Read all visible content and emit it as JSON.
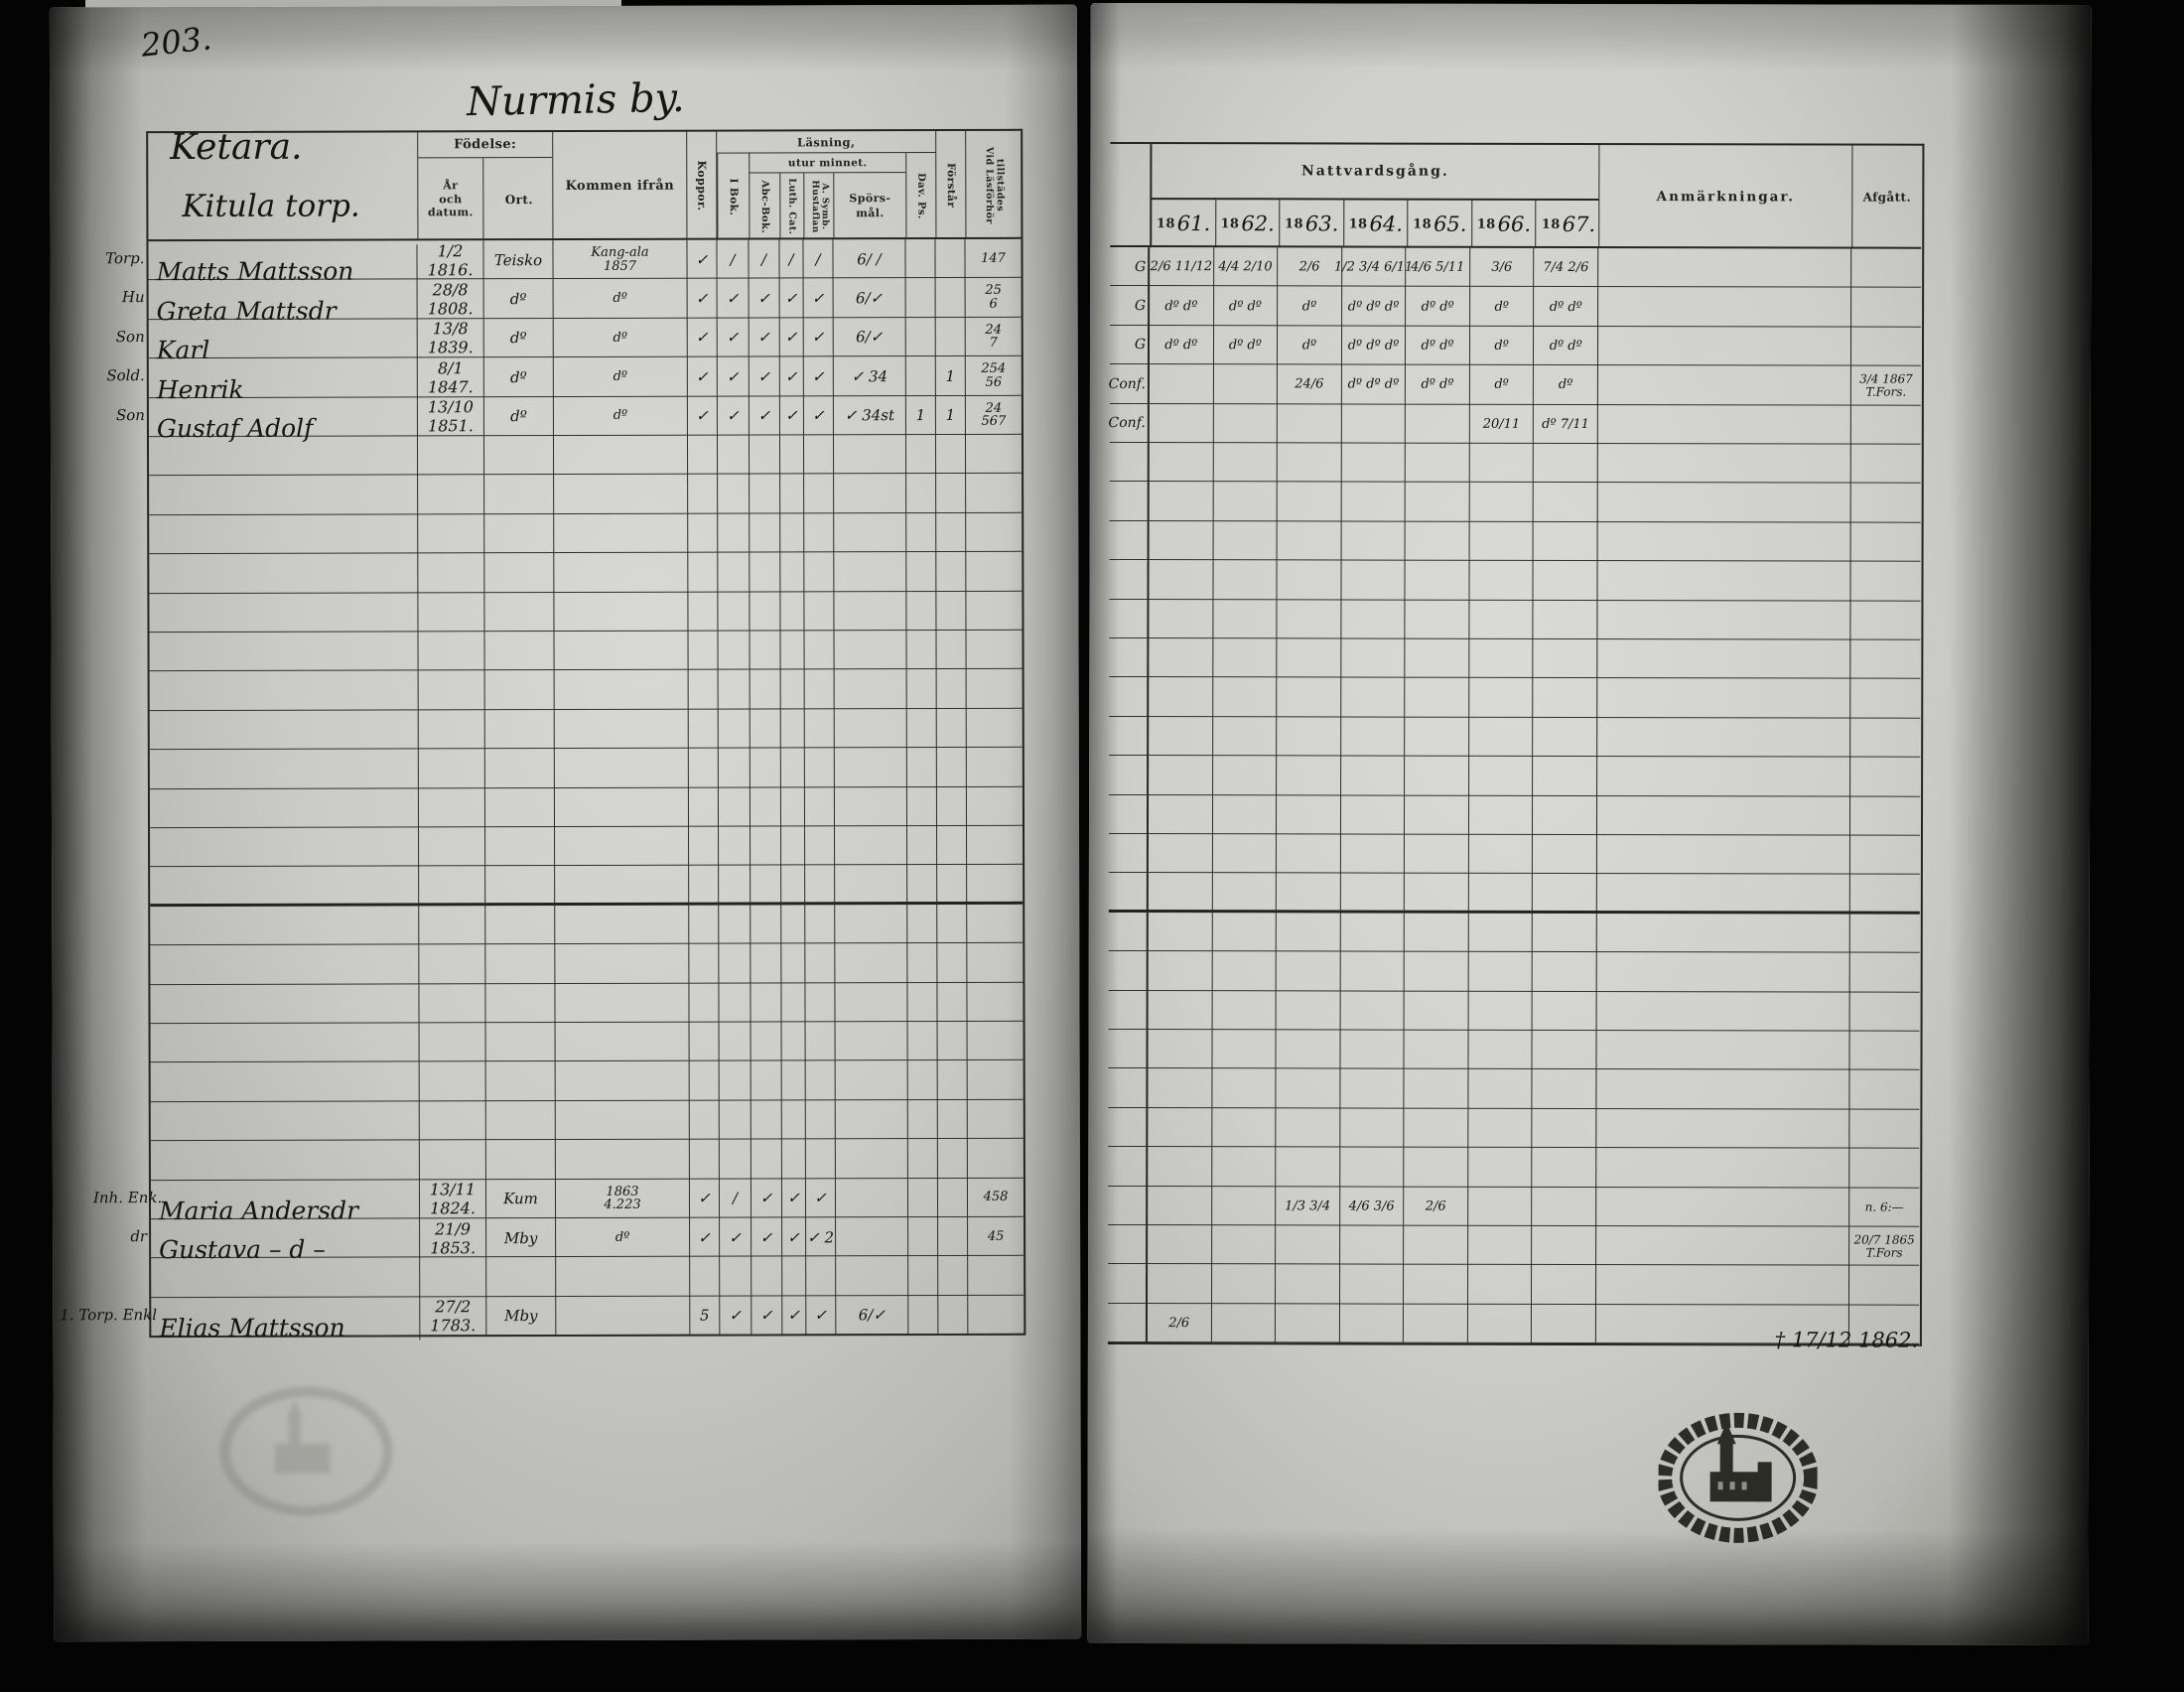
{
  "page": {
    "number": "203.",
    "village_heading": "Nurmis by.",
    "farm_heading": "Ketara.",
    "sub_heading": "Kitula torp."
  },
  "left_table": {
    "headers": {
      "fodelse": "Födelse:",
      "ar_och_datum": "År\noch datum.",
      "ort": "Ort.",
      "kommen_ifran": "Kommen ifrån",
      "koppor": "Koppor.",
      "lasning": "Läsning,",
      "utur_minnet": "utur minnet.",
      "i_bok": "I Bok.",
      "abc_bok": "Abc-Bok.",
      "luth_cat": "Luth. Cat.",
      "hustaflan": "Hustaflan\nA. Symb.",
      "sporsmal": "Spörs-\nmål.",
      "dav_ps": "Dav. Ps.",
      "forstar": "Förstår",
      "vid_lasforhor": "Vid Läsförhör\ntillstädes"
    }
  },
  "right_table": {
    "headers": {
      "nattvardsgang": "Nattvardsgång.",
      "year_prefix": "18",
      "years": [
        "61.",
        "62.",
        "63.",
        "64.",
        "65.",
        "66.",
        "67."
      ],
      "anmarkningar": "Anmärkningar.",
      "afgatt": "Afgått."
    }
  },
  "rows": [
    {
      "prefix": "Torp.",
      "name": "Matts Mattsson",
      "born": "1/2 1816.",
      "ort": "Teisko",
      "kommen": "Kang-ala\n1857",
      "koppor": "✓",
      "ibok": "∕",
      "abc": "∕",
      "luth": "∕",
      "hust": "∕",
      "spors": "6∕ ∕",
      "dav": "",
      "forstar": "",
      "vid": "147",
      "margin": "G",
      "natt": [
        "2/6 11/12",
        "4/4 2/10",
        "2/6",
        "1/2 3/4 6/11",
        "4/6 5/11",
        "3/6",
        "7/4 2/6"
      ],
      "anm": "",
      "afgatt": ""
    },
    {
      "prefix": "Hu",
      "name": "Greta Mattsdr",
      "born": "28/8 1808.",
      "ort": "dº",
      "kommen": "dº",
      "koppor": "✓",
      "ibok": "✓",
      "abc": "✓",
      "luth": "✓",
      "hust": "✓",
      "spors": "6∕✓",
      "dav": "",
      "forstar": "",
      "vid": "25\n6",
      "margin": "G",
      "natt": [
        "dº dº",
        "dº dº",
        "dº",
        "dº dº dº",
        "dº dº",
        "dº",
        "dº dº"
      ],
      "anm": "",
      "afgatt": ""
    },
    {
      "prefix": "Son",
      "name": "Karl",
      "born": "13/8 1839.",
      "ort": "dº",
      "kommen": "dº",
      "koppor": "✓",
      "ibok": "✓",
      "abc": "✓",
      "luth": "✓",
      "hust": "✓",
      "spors": "6∕✓",
      "dav": "",
      "forstar": "",
      "vid": "24\n7",
      "margin": "G",
      "natt": [
        "dº dº",
        "dº dº",
        "dº",
        "dº dº dº",
        "dº dº",
        "dº",
        "dº dº"
      ],
      "anm": "",
      "afgatt": ""
    },
    {
      "prefix": "Sold.",
      "name": "Henrik",
      "born": "8/1 1847.",
      "ort": "dº",
      "kommen": "dº",
      "koppor": "✓",
      "ibok": "✓",
      "abc": "✓",
      "luth": "✓",
      "hust": "✓",
      "spors": "✓ 34",
      "dav": "",
      "forstar": "1",
      "vid": "254\n56",
      "margin": "Conf.",
      "natt": [
        "",
        "",
        "24/6",
        "dº dº dº",
        "dº dº",
        "dº",
        "dº"
      ],
      "anm": "",
      "afgatt": "3/4 1867\nT.Fors."
    },
    {
      "prefix": "Son",
      "name": "Gustaf Adolf",
      "born": "13/10 1851.",
      "ort": "dº",
      "kommen": "dº",
      "koppor": "✓",
      "ibok": "✓",
      "abc": "✓",
      "luth": "✓",
      "hust": "✓",
      "spors": "✓ 34st",
      "dav": "1",
      "forstar": "1",
      "vid": "24\n567",
      "margin": "Conf.",
      "natt": [
        "",
        "",
        "",
        "",
        "",
        "20/11",
        "dº 7/11"
      ],
      "anm": "",
      "afgatt": ""
    },
    {},
    {},
    {},
    {},
    {},
    {},
    {},
    {},
    {},
    {},
    {},
    {},
    {},
    {},
    {},
    {},
    {},
    {},
    {},
    {
      "prefix": "Inh. Enk.",
      "name": "Maria Andersdr",
      "born": "13/11 1824.",
      "ort": "Kum",
      "kommen": "1863\n4.223",
      "koppor": "✓",
      "ibok": "∕",
      "abc": "✓",
      "luth": "✓",
      "hust": "✓",
      "spors": "",
      "dav": "",
      "forstar": "",
      "vid": "458",
      "margin": "",
      "natt": [
        "",
        "",
        "1/3 3/4",
        "4/6 3/6",
        "2/6",
        "",
        ""
      ],
      "anm": "",
      "afgatt": "n. 6:—"
    },
    {
      "prefix": "dr",
      "name": "Gustava – d –",
      "born": "21/9 1853.",
      "ort": "Mby",
      "kommen": "dº",
      "koppor": "✓",
      "ibok": "✓",
      "abc": "✓",
      "luth": "✓",
      "hust": "✓ 2",
      "spors": "",
      "dav": "",
      "forstar": "",
      "vid": "45",
      "margin": "",
      "natt": [
        "",
        "",
        "",
        "",
        "",
        "",
        ""
      ],
      "anm": "",
      "afgatt": "20/7 1865\nT.Fors"
    },
    {},
    {
      "prefix": "1. Torp. Enkl",
      "name": "Elias Mattsson",
      "born": "27/2 1783.",
      "ort": "Mby",
      "kommen": "",
      "koppor": "5",
      "ibok": "✓",
      "abc": "✓",
      "luth": "✓",
      "hust": "✓",
      "spors": "6∕✓",
      "dav": "",
      "forstar": "",
      "vid": "",
      "margin": "",
      "natt": [
        "2/6",
        "",
        "",
        "",
        "",
        "",
        ""
      ],
      "anm": "",
      "afgatt": "† 17/12 1862."
    }
  ],
  "stamps": {
    "church_seal": "oval parish seal with church silhouette",
    "faint_seal": "faint oval ink stamp"
  }
}
